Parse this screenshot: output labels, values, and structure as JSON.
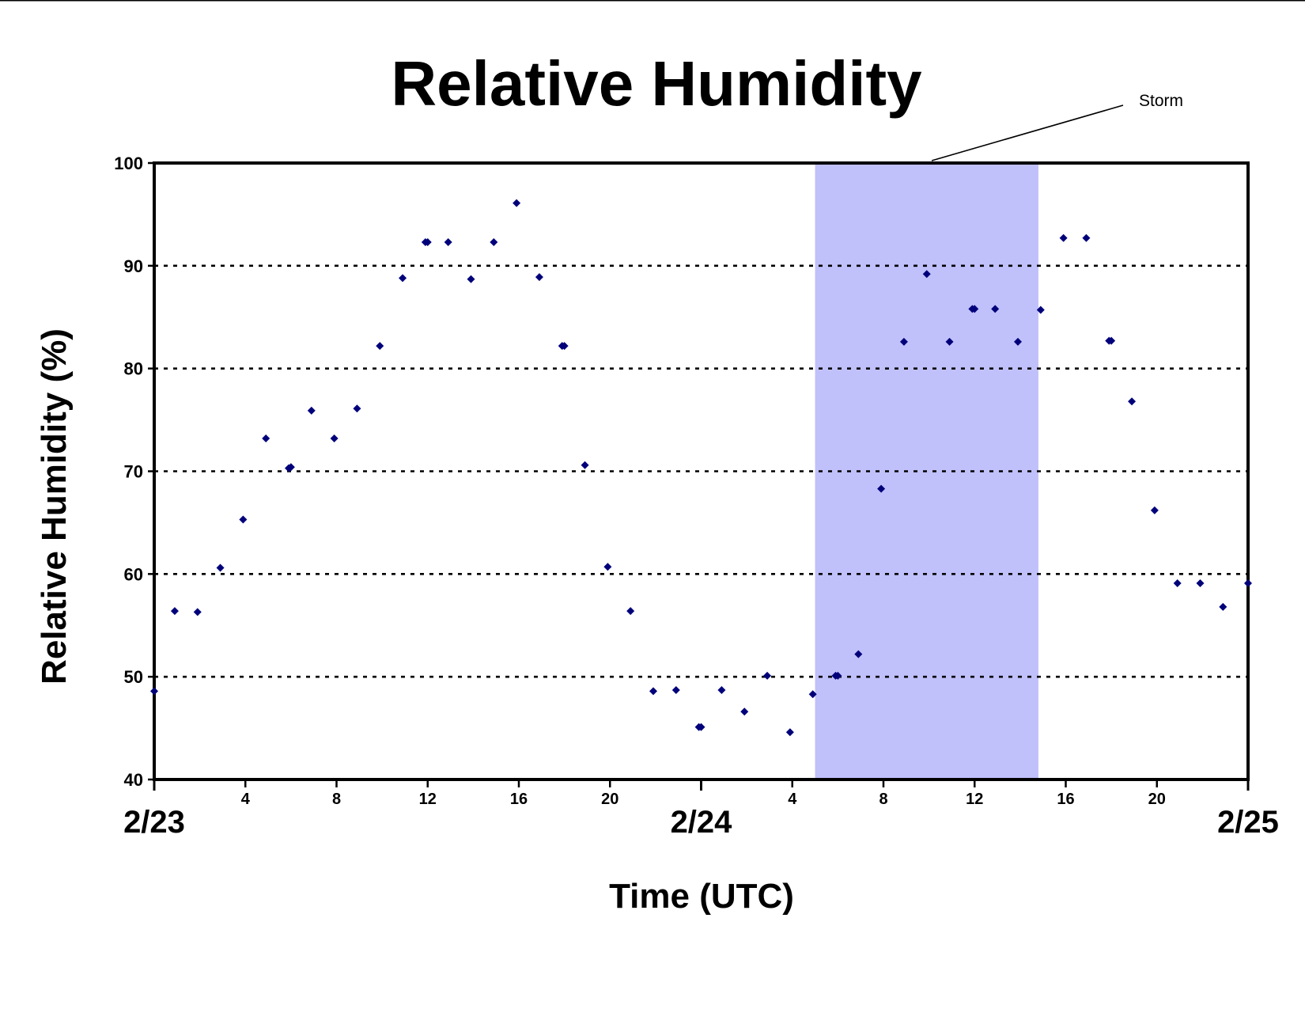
{
  "chart_data": {
    "type": "scatter",
    "title": "Relative Humidity",
    "xlabel": "Time (UTC)",
    "ylabel": "Relative Humidity (%)",
    "ylim": [
      40,
      100
    ],
    "yticks": [
      40,
      50,
      60,
      70,
      80,
      90,
      100
    ],
    "xlim_hours": [
      0,
      48
    ],
    "x_hour_ticks": [
      {
        "h": 4,
        "label": "4"
      },
      {
        "h": 8,
        "label": "8"
      },
      {
        "h": 12,
        "label": "12"
      },
      {
        "h": 16,
        "label": "16"
      },
      {
        "h": 20,
        "label": "20"
      },
      {
        "h": 28,
        "label": "4"
      },
      {
        "h": 32,
        "label": "8"
      },
      {
        "h": 36,
        "label": "12"
      },
      {
        "h": 40,
        "label": "16"
      },
      {
        "h": 44,
        "label": "20"
      }
    ],
    "x_day_ticks": [
      {
        "h": 0,
        "label": "2/23"
      },
      {
        "h": 24,
        "label": "2/24"
      },
      {
        "h": 48,
        "label": "2/25"
      }
    ],
    "grid": "horizontal dotted",
    "marker_color": "#00007a",
    "storm": {
      "label": "Storm",
      "start_hour": 29.0,
      "end_hour": 38.8,
      "color": "#c0c0fb"
    },
    "series": [
      {
        "points": [
          [
            0.0,
            48.6
          ],
          [
            0.9,
            56.4
          ],
          [
            1.9,
            56.3
          ],
          [
            2.9,
            60.6
          ],
          [
            3.9,
            65.3
          ],
          [
            4.9,
            73.2
          ],
          [
            5.9,
            70.3
          ],
          [
            6.0,
            70.4
          ],
          [
            6.9,
            75.9
          ],
          [
            7.9,
            73.2
          ],
          [
            8.9,
            76.1
          ],
          [
            9.9,
            82.2
          ],
          [
            10.9,
            88.8
          ],
          [
            11.9,
            92.3
          ],
          [
            12.0,
            92.3
          ],
          [
            12.9,
            92.3
          ],
          [
            13.9,
            88.7
          ],
          [
            14.9,
            92.3
          ],
          [
            15.9,
            96.1
          ],
          [
            16.9,
            88.9
          ],
          [
            17.9,
            82.2
          ],
          [
            18.0,
            82.2
          ],
          [
            18.9,
            70.6
          ],
          [
            19.9,
            60.7
          ],
          [
            20.9,
            56.4
          ],
          [
            21.9,
            48.6
          ],
          [
            22.9,
            48.7
          ],
          [
            23.9,
            45.1
          ],
          [
            24.0,
            45.1
          ],
          [
            24.9,
            48.7
          ],
          [
            25.9,
            46.6
          ],
          [
            26.9,
            50.1
          ],
          [
            27.9,
            44.6
          ],
          [
            28.9,
            48.3
          ],
          [
            29.9,
            50.1
          ],
          [
            30.0,
            50.1
          ],
          [
            30.9,
            52.2
          ],
          [
            31.9,
            68.3
          ],
          [
            32.9,
            82.6
          ],
          [
            33.9,
            89.2
          ],
          [
            34.9,
            82.6
          ],
          [
            35.9,
            85.8
          ],
          [
            36.0,
            85.8
          ],
          [
            36.9,
            85.8
          ],
          [
            37.9,
            82.6
          ],
          [
            38.9,
            85.7
          ],
          [
            39.9,
            92.7
          ],
          [
            40.9,
            92.7
          ],
          [
            41.9,
            82.7
          ],
          [
            42.0,
            82.7
          ],
          [
            42.9,
            76.8
          ],
          [
            43.9,
            66.2
          ],
          [
            44.9,
            59.1
          ],
          [
            45.9,
            59.1
          ],
          [
            46.9,
            56.8
          ],
          [
            48.0,
            59.1
          ]
        ]
      }
    ]
  }
}
